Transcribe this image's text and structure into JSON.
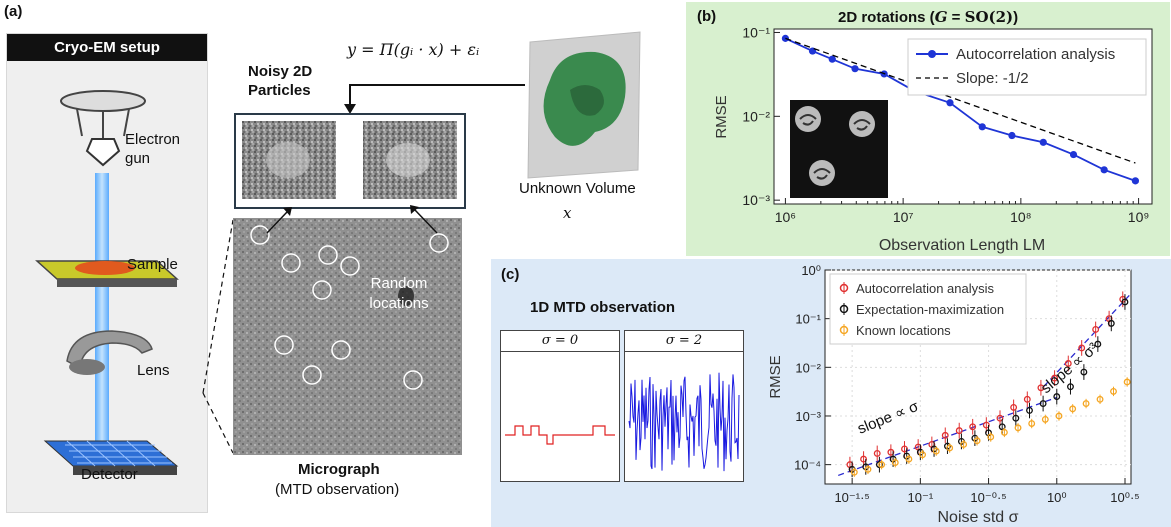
{
  "panel_a": {
    "label": "(a)",
    "setup_title": "Cryo-EM setup",
    "electron_gun": "Electron gun",
    "sample": "Sample",
    "lens": "Lens",
    "detector": "Detector",
    "equation": "y = Π(gᵢ · x) + εᵢ",
    "noisy_title": "Noisy 2D Particles",
    "unknown_volume": "Unknown Volume",
    "volume_var": "x",
    "random_locations": "Random locations",
    "micrograph": "Micrograph",
    "micrograph_sub": "(MTD observation)"
  },
  "panel_b": {
    "label": "(b)",
    "chart_data": {
      "type": "line",
      "title": "2D rotations (G = SO(2))",
      "xlabel": "Observation Length LM",
      "ylabel": "RMSE",
      "xscale": "log",
      "yscale": "log",
      "xlim": [
        800000,
        1300000000
      ],
      "ylim": [
        0.0009,
        0.11
      ],
      "xticks": [
        "10⁶",
        "10⁷",
        "10⁸",
        "10⁹"
      ],
      "yticks": [
        "10⁻¹",
        "10⁻²",
        "10⁻³"
      ],
      "legend": "top-right",
      "series": [
        {
          "name": "Autocorrelation analysis",
          "color": "#1f35d6",
          "x": [
            1000000,
            1700000,
            2500000,
            3900000,
            6900000,
            12500000,
            25000000,
            47000000,
            84000000,
            155000000,
            280000000,
            510000000,
            940000000
          ],
          "y": [
            0.085,
            0.06,
            0.048,
            0.037,
            0.032,
            0.02,
            0.0145,
            0.0075,
            0.0059,
            0.0049,
            0.0035,
            0.0023,
            0.0017
          ]
        },
        {
          "name": "Slope: -1/2",
          "color": "#000000",
          "dashed": true,
          "x": [
            1000000,
            940000000
          ],
          "y": [
            0.085,
            0.00277
          ]
        }
      ]
    }
  },
  "panel_c": {
    "label": "(c)",
    "mtd_title": "1D MTD observation",
    "sigma0": "σ = 0",
    "sigma2": "σ = 2",
    "annotation_low": "slope ∝ σ",
    "annotation_high": "slope ∝ σ³",
    "chart_data": {
      "type": "scatter",
      "xlabel": "Noise std σ",
      "ylabel": "RMSE",
      "xscale": "log",
      "yscale": "log",
      "xlim": [
        0.02,
        3.5
      ],
      "ylim": [
        4e-05,
        1
      ],
      "xticks": [
        "10⁻¹·⁵",
        "10⁻¹",
        "10⁻⁰·⁵",
        "10⁰",
        "10⁰·⁵"
      ],
      "yticks": [
        "10⁰",
        "10⁻¹",
        "10⁻²",
        "10⁻³",
        "10⁻⁴"
      ],
      "legend": "top-left",
      "series": [
        {
          "name": "Autocorrelation analysis",
          "color": "#e03030",
          "x": [
            0.0316,
            0.0398,
            0.0501,
            0.0631,
            0.0794,
            0.1,
            0.126,
            0.158,
            0.2,
            0.251,
            0.316,
            0.398,
            0.501,
            0.631,
            0.794,
            1.0,
            1.26,
            1.58,
            2.0,
            2.51,
            3.16
          ],
          "y": [
            0.0001,
            0.00013,
            0.00017,
            0.00018,
            0.00021,
            0.00023,
            0.00026,
            0.0004,
            0.0005,
            0.0006,
            0.00065,
            0.0009,
            0.0015,
            0.0022,
            0.0038,
            0.006,
            0.012,
            0.025,
            0.06,
            0.1,
            0.25
          ]
        },
        {
          "name": "Expectation-maximization",
          "color": "#111111",
          "x": [
            0.0316,
            0.0398,
            0.0501,
            0.0631,
            0.0794,
            0.1,
            0.126,
            0.158,
            0.2,
            0.251,
            0.316,
            0.398,
            0.501,
            0.631,
            0.794,
            1.0,
            1.26,
            1.58,
            2.0,
            2.51,
            3.16
          ],
          "y": [
            8e-05,
            9e-05,
            0.0001,
            0.00013,
            0.00015,
            0.00018,
            0.00021,
            0.00024,
            0.0003,
            0.00035,
            0.00045,
            0.0006,
            0.0009,
            0.0013,
            0.0018,
            0.0025,
            0.004,
            0.008,
            0.03,
            0.08,
            0.22
          ]
        },
        {
          "name": "Known locations",
          "color": "#f5a623",
          "x": [
            0.0316,
            0.0398,
            0.0501,
            0.0631,
            0.0794,
            0.1,
            0.126,
            0.158,
            0.2,
            0.251,
            0.316,
            0.398,
            0.501,
            0.631,
            0.794,
            1.0,
            1.26,
            1.58,
            2.0,
            2.51,
            3.16
          ],
          "y": [
            7e-05,
            8e-05,
            0.0001,
            0.00011,
            0.00013,
            0.00016,
            0.00019,
            0.00022,
            0.00026,
            0.00031,
            0.00037,
            0.00046,
            0.00057,
            0.0007,
            0.00085,
            0.001,
            0.0014,
            0.0018,
            0.0022,
            0.0032,
            0.005
          ]
        }
      ]
    }
  }
}
